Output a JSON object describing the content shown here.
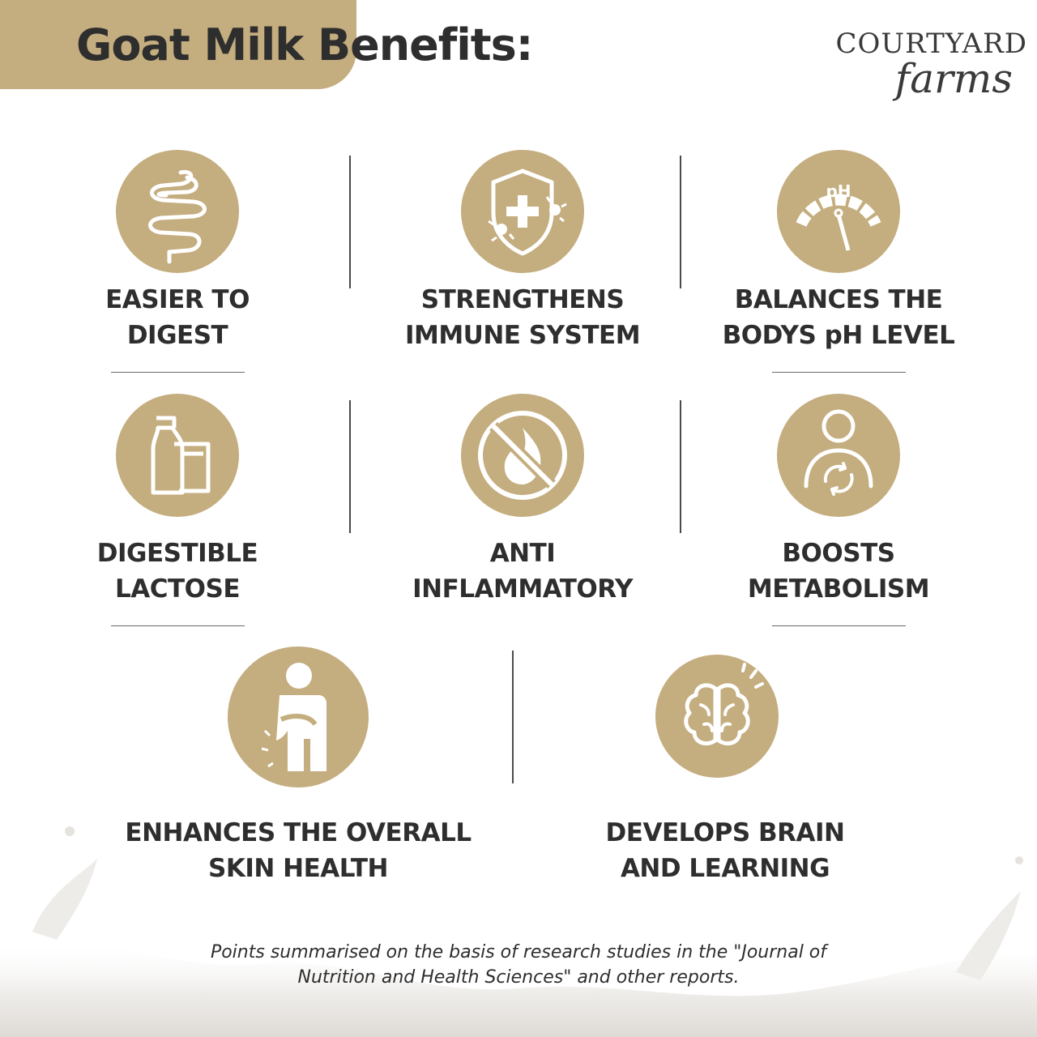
{
  "header": {
    "title": "Goat Milk Benefits:",
    "brand_line1": "COURTYARD",
    "brand_line2": "farms",
    "band_color": "#c4ad7e"
  },
  "benefits": [
    {
      "icon": "intestine-icon",
      "line1": "EASIER TO",
      "line2": "DIGEST"
    },
    {
      "icon": "immune-shield-icon",
      "line1": "STRENGTHENS",
      "line2": "IMMUNE SYSTEM"
    },
    {
      "icon": "ph-gauge-icon",
      "line1": "BALANCES THE",
      "line2": "BODYS pH LEVEL",
      "icon_text": "pH"
    },
    {
      "icon": "milk-bottle-glass-icon",
      "line1": "DIGESTIBLE",
      "line2": "LACTOSE"
    },
    {
      "icon": "no-fire-icon",
      "line1": "ANTI",
      "line2": "INFLAMMATORY"
    },
    {
      "icon": "person-cycle-icon",
      "line1": "BOOSTS",
      "line2": "METABOLISM"
    },
    {
      "icon": "person-scratching-icon",
      "line1": "ENHANCES THE OVERALL",
      "line2": "SKIN HEALTH"
    },
    {
      "icon": "brain-icon",
      "line1": "DEVELOPS BRAIN",
      "line2": "AND LEARNING"
    }
  ],
  "footnote": {
    "line1": "Points summarised on the basis of research studies in the \"Journal of",
    "line2": "Nutrition and Health Sciences\" and other reports."
  },
  "colors": {
    "accent": "#c4ad7e",
    "text": "#2e2e2e",
    "icon_line": "#ffffff"
  }
}
